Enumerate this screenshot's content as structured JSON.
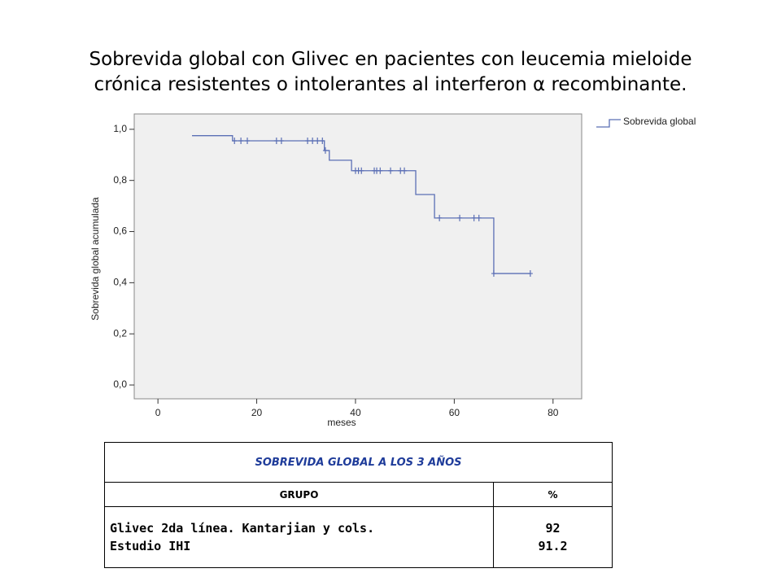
{
  "title": [
    "Sobrevida global con Glivec en pacientes con leucemia mieloide",
    "crónica resistentes o intolerantes al interferon α recombinante."
  ],
  "chart_data": {
    "type": "line",
    "step": true,
    "xlabel": "meses",
    "ylabel": "Sobrevida global acumulada",
    "xlim": [
      -4.8,
      85.8
    ],
    "ylim": [
      -0.054,
      1.06
    ],
    "xticks": [
      0,
      20,
      40,
      60,
      80
    ],
    "yticks": [
      {
        "value": 0,
        "label": "0,0"
      },
      {
        "value": 0.2,
        "label": "0,2"
      },
      {
        "value": 0.4,
        "label": "0,4"
      },
      {
        "value": 0.6,
        "label": "0,6"
      },
      {
        "value": 0.8,
        "label": "0,8"
      },
      {
        "value": 1,
        "label": "1,0"
      }
    ],
    "legend": "top-right",
    "background": "#f0f0f0",
    "series": [
      {
        "name": "Sobrevida global",
        "color": "#5b6fb5",
        "x": [
          6.9,
          15.1,
          33.7,
          34.7,
          39.2,
          52.2,
          56,
          68,
          75.4
        ],
        "values": [
          0.975,
          0.955,
          0.917,
          0.879,
          0.838,
          0.745,
          0.653,
          0.436,
          0.436
        ],
        "censored": {
          "x": [
            15.5,
            16.8,
            18.1,
            24,
            25,
            30.3,
            31.3,
            32.3,
            33.3,
            33.9,
            40,
            40.6,
            41.2,
            43.8,
            44.3,
            45,
            47.1,
            49.1,
            49.9,
            57,
            61.1,
            64,
            65,
            68,
            75.4
          ],
          "values": [
            0.955,
            0.955,
            0.955,
            0.955,
            0.955,
            0.955,
            0.955,
            0.955,
            0.955,
            0.917,
            0.838,
            0.838,
            0.838,
            0.838,
            0.838,
            0.838,
            0.838,
            0.838,
            0.838,
            0.653,
            0.653,
            0.653,
            0.653,
            0.436,
            0.436
          ]
        }
      }
    ]
  },
  "table": {
    "title": "SOBREVIDA GLOBAL A LOS 3 AÑOS",
    "header": [
      "GRUPO",
      "%"
    ],
    "rows": [
      [
        [
          "Glivec 2da línea. Kantarjian y cols.",
          "Estudio IHI"
        ],
        [
          "92",
          "91.2"
        ]
      ]
    ]
  }
}
